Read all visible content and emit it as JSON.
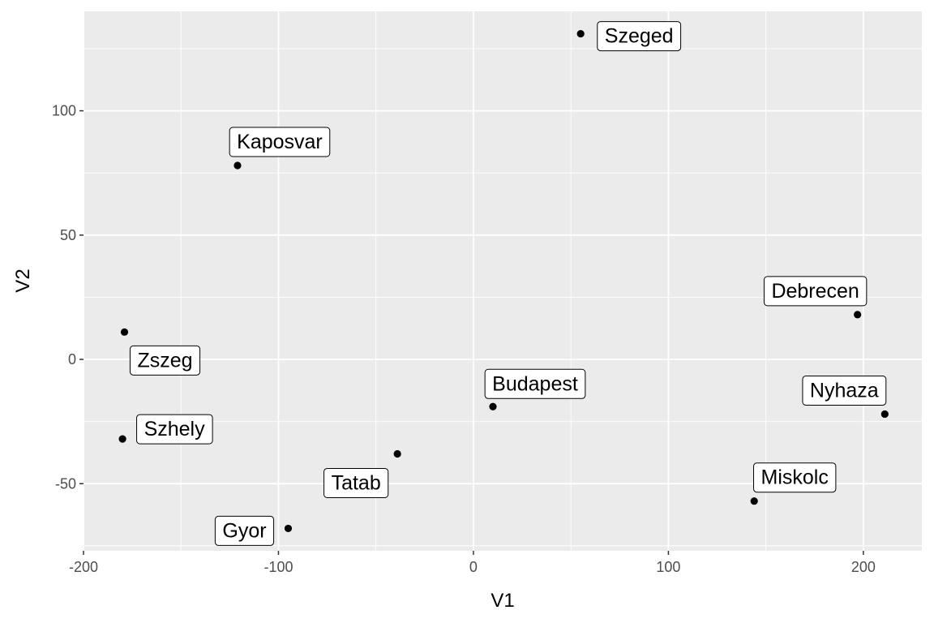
{
  "chart_data": {
    "type": "scatter",
    "xlabel": "V1",
    "ylabel": "V2",
    "xlim": [
      -200,
      230
    ],
    "ylim": [
      -77,
      140
    ],
    "x_ticks": [
      -200,
      -100,
      0,
      100,
      200
    ],
    "x_tick_labels": [
      "-200",
      "-100",
      "0",
      "100",
      "200"
    ],
    "y_ticks": [
      -50,
      0,
      50,
      100
    ],
    "y_tick_labels": [
      "-50",
      "0",
      "50",
      "100"
    ],
    "grid": true,
    "colors": {
      "panel_bg": "#ebebeb",
      "grid_major": "#ffffff",
      "point": "#000000"
    },
    "points": [
      {
        "label": "Szeged",
        "x": 55,
        "y": 131
      },
      {
        "label": "Kaposvar",
        "x": -121,
        "y": 78
      },
      {
        "label": "Debrecen",
        "x": 197,
        "y": 18
      },
      {
        "label": "Zszeg",
        "x": -179,
        "y": 11
      },
      {
        "label": "Budapest",
        "x": 10,
        "y": -19
      },
      {
        "label": "Nyhaza",
        "x": 211,
        "y": -22
      },
      {
        "label": "Szhely",
        "x": -180,
        "y": -32
      },
      {
        "label": "Tatab",
        "x": -39,
        "y": -38
      },
      {
        "label": "Miskolc",
        "x": 144,
        "y": -57
      },
      {
        "label": "Gyor",
        "x": -95,
        "y": -68
      }
    ]
  }
}
